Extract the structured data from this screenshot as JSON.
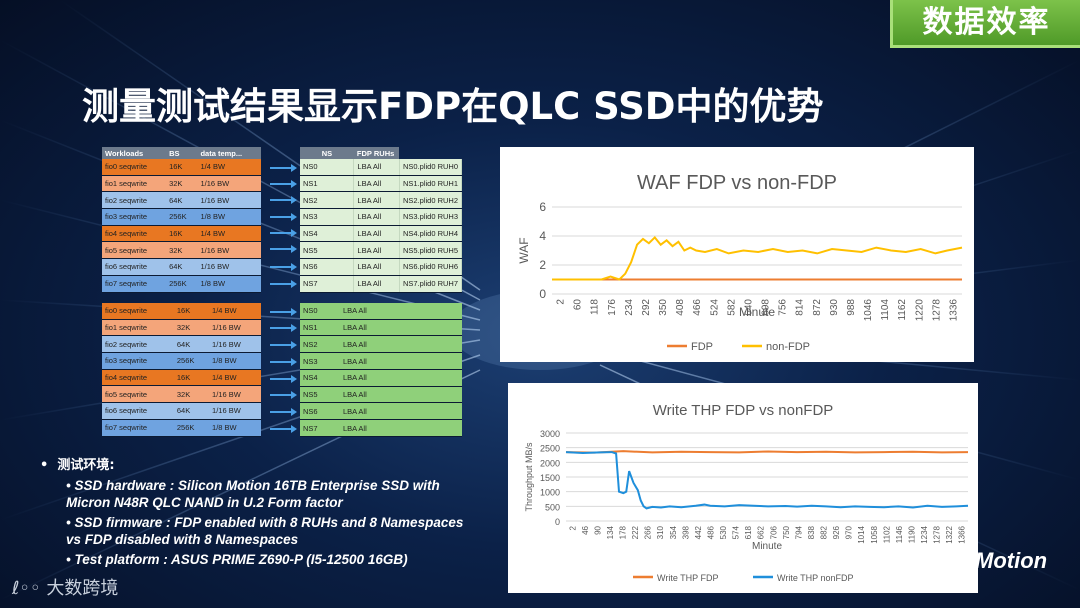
{
  "badge": "数据效率",
  "title": "测量测试结果显示FDP在QLC SSD中的优势",
  "table_headers": {
    "workloads": "Workloads",
    "bs": "BS",
    "temp": "data temp...",
    "ns": "NS",
    "ruhs": "FDP RUHs"
  },
  "workloads": [
    {
      "name": "fio0 seqwrite",
      "bs": "16K",
      "bw": "1/4 BW",
      "color": "#e87722"
    },
    {
      "name": "fio1 seqwrite",
      "bs": "32K",
      "bw": "1/16 BW",
      "color": "#f4a57a"
    },
    {
      "name": "fio2 seqwrite",
      "bs": "64K",
      "bw": "1/16 BW",
      "color": "#9fc2ea"
    },
    {
      "name": "fio3 seqwrite",
      "bs": "256K",
      "bw": "1/8 BW",
      "color": "#6fa3e0"
    },
    {
      "name": "fio4 seqwrite",
      "bs": "16K",
      "bw": "1/4 BW",
      "color": "#e87722"
    },
    {
      "name": "fio5 seqwrite",
      "bs": "32K",
      "bw": "1/16 BW",
      "color": "#f4a57a"
    },
    {
      "name": "fio6 seqwrite",
      "bs": "64K",
      "bw": "1/16 BW",
      "color": "#9fc2ea"
    },
    {
      "name": "fio7 seqwrite",
      "bs": "256K",
      "bw": "1/8 BW",
      "color": "#6fa3e0"
    }
  ],
  "fdp_ns": [
    {
      "ns": "NS0",
      "lba": "LBA All",
      "ruh": "NS0.plid0   RUH0"
    },
    {
      "ns": "NS1",
      "lba": "LBA All",
      "ruh": "NS1.plid0   RUH1"
    },
    {
      "ns": "NS2",
      "lba": "LBA All",
      "ruh": "NS2.plid0   RUH2"
    },
    {
      "ns": "NS3",
      "lba": "LBA All",
      "ruh": "NS3.plid0   RUH3"
    },
    {
      "ns": "NS4",
      "lba": "LBA All",
      "ruh": "NS4.plid0   RUH4"
    },
    {
      "ns": "NS5",
      "lba": "LBA All",
      "ruh": "NS5.plid0   RUH5"
    },
    {
      "ns": "NS6",
      "lba": "LBA All",
      "ruh": "NS6.plid0   RUH6"
    },
    {
      "ns": "NS7",
      "lba": "LBA All",
      "ruh": "NS7.plid0   RUH7"
    }
  ],
  "nonfdp_ns": [
    {
      "ns": "NS0",
      "lba": "LBA All"
    },
    {
      "ns": "NS1",
      "lba": "LBA All"
    },
    {
      "ns": "NS2",
      "lba": "LBA All"
    },
    {
      "ns": "NS3",
      "lba": "LBA All"
    },
    {
      "ns": "NS4",
      "lba": "LBA All"
    },
    {
      "ns": "NS5",
      "lba": "LBA All"
    },
    {
      "ns": "NS6",
      "lba": "LBA All"
    },
    {
      "ns": "NS7",
      "lba": "LBA All"
    }
  ],
  "bullets": {
    "heading": "测试环境:",
    "items": [
      "SSD hardware : Silicon Motion 16TB Enterprise SSD with Micron N48R QLC NAND in U.2 Form factor",
      "SSD firmware : FDP enabled with 8 RUHs and 8 Namespaces vs FDP disabled with 8 Namespaces",
      "Test platform : ASUS PRIME Z690-P (I5-12500 16GB)"
    ]
  },
  "brand": "Motion",
  "watermark": "大数跨境",
  "chart_data": [
    {
      "type": "line",
      "title": "WAF FDP vs non-FDP",
      "xlabel": "Minute",
      "ylabel": "WAF",
      "ylim": [
        0,
        6
      ],
      "yticks": [
        0,
        2,
        4,
        6
      ],
      "xticks": [
        "2",
        "60",
        "118",
        "176",
        "234",
        "292",
        "350",
        "408",
        "466",
        "524",
        "582",
        "640",
        "698",
        "756",
        "814",
        "872",
        "930",
        "988",
        "1046",
        "1104",
        "1162",
        "1220",
        "1278",
        "1336"
      ],
      "xlim": [
        2,
        1390
      ],
      "grid": true,
      "legend": "bottom",
      "series": [
        {
          "name": "FDP",
          "color": "#ed7d31",
          "x": [
            2,
            1390
          ],
          "y": [
            1.0,
            1.0
          ]
        },
        {
          "name": "non-FDP",
          "color": "#ffc000",
          "x": [
            2,
            170,
            200,
            230,
            250,
            270,
            290,
            310,
            330,
            350,
            370,
            390,
            410,
            430,
            450,
            470,
            490,
            520,
            560,
            600,
            650,
            700,
            750,
            800,
            850,
            900,
            950,
            1000,
            1050,
            1100,
            1150,
            1200,
            1250,
            1300,
            1340,
            1390
          ],
          "y": [
            1.0,
            1.0,
            1.2,
            1.0,
            1.4,
            2.2,
            3.4,
            3.8,
            3.5,
            3.9,
            3.4,
            3.7,
            3.3,
            3.6,
            3.0,
            3.2,
            3.0,
            2.9,
            3.1,
            2.8,
            3.0,
            2.9,
            3.1,
            2.9,
            3.0,
            2.8,
            3.1,
            3.0,
            2.9,
            3.2,
            3.0,
            2.9,
            3.1,
            2.8,
            3.0,
            3.2
          ]
        }
      ]
    },
    {
      "type": "line",
      "title": "Write THP FDP vs nonFDP",
      "xlabel": "Minute",
      "ylabel": "Throughput MB/s",
      "ylim": [
        0,
        3000
      ],
      "yticks": [
        0,
        500,
        1000,
        1500,
        2000,
        2500,
        3000
      ],
      "xticks": [
        "2",
        "46",
        "90",
        "134",
        "178",
        "222",
        "266",
        "310",
        "354",
        "398",
        "442",
        "486",
        "530",
        "574",
        "618",
        "662",
        "706",
        "750",
        "794",
        "838",
        "882",
        "926",
        "970",
        "1014",
        "1058",
        "1102",
        "1146",
        "1190",
        "1234",
        "1278",
        "1322",
        "1366"
      ],
      "xlim": [
        2,
        1390
      ],
      "grid": true,
      "legend": "bottom",
      "series": [
        {
          "name": "Write THP FDP",
          "color": "#ed7d31",
          "x": [
            2,
            100,
            200,
            300,
            400,
            500,
            600,
            700,
            800,
            900,
            1000,
            1100,
            1200,
            1300,
            1390
          ],
          "y": [
            2350,
            2330,
            2380,
            2340,
            2360,
            2350,
            2340,
            2370,
            2350,
            2360,
            2340,
            2350,
            2360,
            2340,
            2350
          ]
        },
        {
          "name": "Write THP nonFDP",
          "color": "#1f8fdb",
          "x": [
            2,
            60,
            120,
            160,
            175,
            185,
            200,
            210,
            220,
            235,
            250,
            260,
            270,
            280,
            300,
            330,
            360,
            400,
            450,
            480,
            500,
            550,
            600,
            650,
            700,
            760,
            800,
            850,
            900,
            950,
            1000,
            1050,
            1100,
            1150,
            1200,
            1250,
            1300,
            1350,
            1390
          ],
          "y": [
            2350,
            2320,
            2340,
            2350,
            2300,
            1000,
            950,
            1000,
            1700,
            1300,
            1050,
            700,
            500,
            430,
            480,
            460,
            500,
            470,
            520,
            560,
            520,
            500,
            540,
            520,
            500,
            510,
            490,
            520,
            500,
            470,
            500,
            480,
            470,
            500,
            460,
            520,
            480,
            500,
            520
          ]
        }
      ]
    }
  ]
}
